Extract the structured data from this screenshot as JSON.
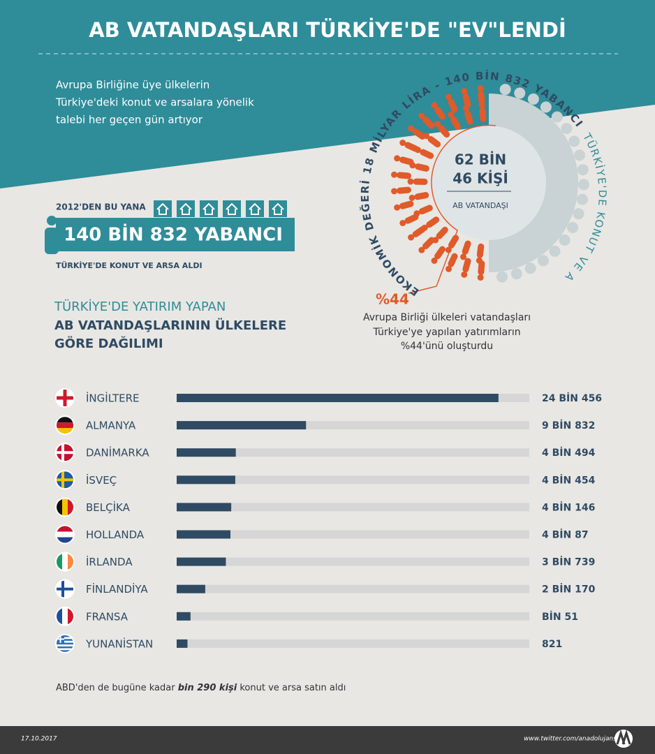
{
  "header": {
    "title": "AB VATANDAŞLARI TÜRKİYE'DE \"EV\"LENDİ",
    "intro": [
      "Avrupa Birliğine üye ülkelerin",
      "Türkiye'deki konut ve arsalara yönelik",
      "talebi her geçen gün artıyor"
    ]
  },
  "summary": {
    "since": "2012'DEN BU YANA",
    "count": "140 BİN 832 YABANCI",
    "caption": "TÜRKİYE'DE KONUT VE ARSA ALDI"
  },
  "circle": {
    "center": [
      "62 BİN",
      "46 KİŞİ"
    ],
    "center_label": "AB VATANDAŞI",
    "ring_text": [
      "EKONOMİK DEĞERİ 18 MİLYAR LİRA - 140 BİN 832 YABANCI",
      "TÜRKİYE'DE KONUT VE ARSA ALDI"
    ],
    "share": "%44",
    "share_caption": [
      "Avrupa Birliği ülkeleri vatandaşları",
      "Türkiye'ye yapılan yatırımların",
      "%44'ünü oluşturdu"
    ]
  },
  "chart_data": {
    "type": "bar",
    "orientation": "horizontal",
    "title": [
      "TÜRKİYE'DE YATIRIM YAPAN",
      "AB VATANDAŞLARININ ÜLKELERE",
      "GÖRE DAĞILIMI"
    ],
    "categories": [
      "İNGİLTERE",
      "ALMANYA",
      "DANİMARKA",
      "İSVEÇ",
      "BELÇİKA",
      "HOLLANDA",
      "İRLANDA",
      "FİNLANDİYA",
      "FRANSA",
      "YUNANİSTAN"
    ],
    "values": [
      24456,
      9832,
      4494,
      4454,
      4146,
      4087,
      3739,
      2170,
      1051,
      821
    ],
    "value_labels": [
      "24 BİN 456",
      "9 BİN 832",
      "4 BİN 494",
      "4 BİN 454",
      "4 BİN 146",
      "4 BİN 87",
      "3 BİN 739",
      "2 BİN 170",
      "BİN 51",
      "821"
    ],
    "xlim": [
      0,
      26800
    ],
    "color": "#2f4a63",
    "track_color": "#d6d6d6"
  },
  "note": {
    "before": "ABD'den de bugüne kadar ",
    "emphasis": "bin 290 kişi",
    "after": " konut ve arsa satın aldı"
  },
  "footer": {
    "date": "17.10.2017",
    "source": "www.twitter.com/anadolujansi"
  }
}
